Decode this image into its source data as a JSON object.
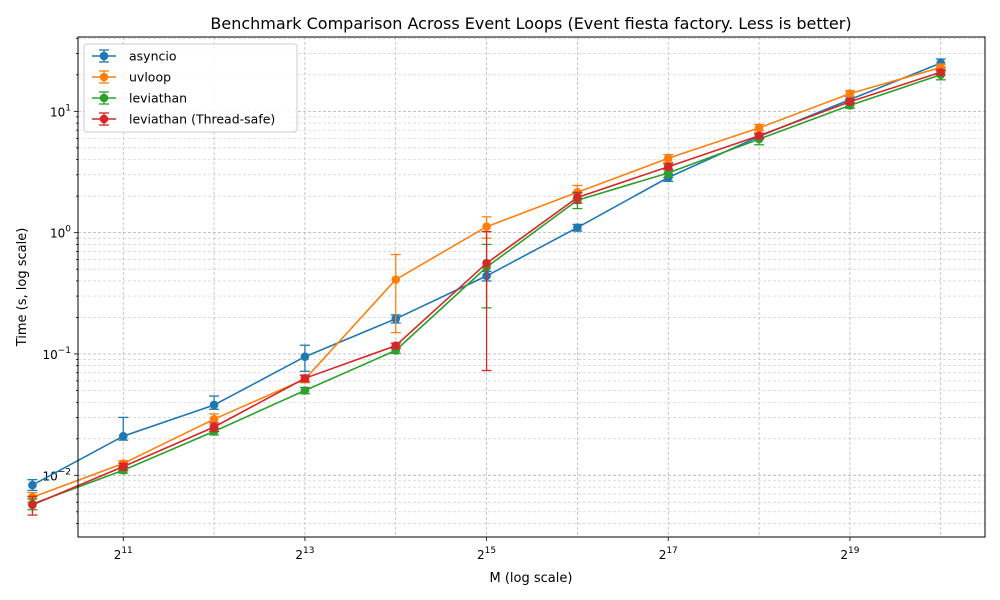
{
  "chart_data": {
    "type": "line",
    "title": "Benchmark Comparison Across Event Loops (Event fiesta factory. Less is better)",
    "xlabel": "M (log scale)",
    "ylabel": "Time (s, log scale)",
    "x_scale": "log2",
    "y_scale": "log10",
    "xlim": [
      1450,
      1470000
    ],
    "ylim": [
      0.0031,
      41
    ],
    "x_ticks": [
      {
        "value": 2048,
        "base": "2",
        "exp": "11"
      },
      {
        "value": 8192,
        "base": "2",
        "exp": "13"
      },
      {
        "value": 32768,
        "base": "2",
        "exp": "15"
      },
      {
        "value": 131072,
        "base": "2",
        "exp": "17"
      },
      {
        "value": 524288,
        "base": "2",
        "exp": "19"
      }
    ],
    "y_ticks": [
      {
        "value": 0.01,
        "base": "10",
        "exp": "−2"
      },
      {
        "value": 0.1,
        "base": "10",
        "exp": "−1"
      },
      {
        "value": 1,
        "base": "10",
        "exp": "0"
      },
      {
        "value": 10,
        "base": "10",
        "exp": "1"
      }
    ],
    "grid": true,
    "legend_position": "top-left",
    "x": [
      1024,
      2048,
      4096,
      8192,
      16384,
      32768,
      65536,
      131072,
      262144,
      524288,
      1048576
    ],
    "series": [
      {
        "name": "asyncio",
        "color": "#1f77b4",
        "values": [
          0.0083,
          0.021,
          0.038,
          0.095,
          0.195,
          0.44,
          1.1,
          2.85,
          6.2,
          12.5,
          25
        ],
        "err_low": [
          0.0075,
          0.0195,
          0.035,
          0.072,
          0.18,
          0.4,
          1.03,
          2.65,
          5.9,
          11.8,
          23
        ],
        "err_high": [
          0.0092,
          0.03,
          0.045,
          0.118,
          0.21,
          0.48,
          1.17,
          3.05,
          6.5,
          13.2,
          27
        ]
      },
      {
        "name": "uvloop",
        "color": "#ff7f0e",
        "values": [
          0.0066,
          0.0125,
          0.029,
          0.062,
          0.41,
          1.12,
          2.15,
          4.1,
          7.3,
          14,
          23
        ],
        "err_low": [
          0.006,
          0.0118,
          0.026,
          0.058,
          0.15,
          0.9,
          1.9,
          3.8,
          6.9,
          13.2,
          21.5
        ],
        "err_high": [
          0.0072,
          0.0132,
          0.032,
          0.066,
          0.66,
          1.35,
          2.45,
          4.4,
          7.8,
          14.8,
          24.5
        ]
      },
      {
        "name": "leviathan",
        "color": "#2ca02c",
        "values": [
          0.0058,
          0.011,
          0.023,
          0.05,
          0.107,
          0.52,
          1.85,
          3.1,
          5.9,
          11.2,
          20
        ],
        "err_low": [
          0.0052,
          0.0104,
          0.0215,
          0.047,
          0.101,
          0.24,
          1.58,
          2.85,
          5.3,
          10.6,
          18.2
        ],
        "err_high": [
          0.0064,
          0.0116,
          0.0245,
          0.053,
          0.113,
          0.8,
          2.12,
          3.35,
          6.5,
          11.8,
          21.8
        ]
      },
      {
        "name": "leviathan (Thread-safe)",
        "color": "#d62728",
        "values": [
          0.0057,
          0.0118,
          0.025,
          0.063,
          0.117,
          0.56,
          1.95,
          3.5,
          6.3,
          12,
          21
        ],
        "err_low": [
          0.0047,
          0.011,
          0.023,
          0.059,
          0.111,
          0.073,
          1.75,
          3.3,
          6.0,
          11.5,
          20
        ],
        "err_high": [
          0.0067,
          0.0126,
          0.027,
          0.067,
          0.123,
          1.02,
          2.15,
          3.7,
          6.6,
          12.5,
          22
        ]
      }
    ]
  }
}
